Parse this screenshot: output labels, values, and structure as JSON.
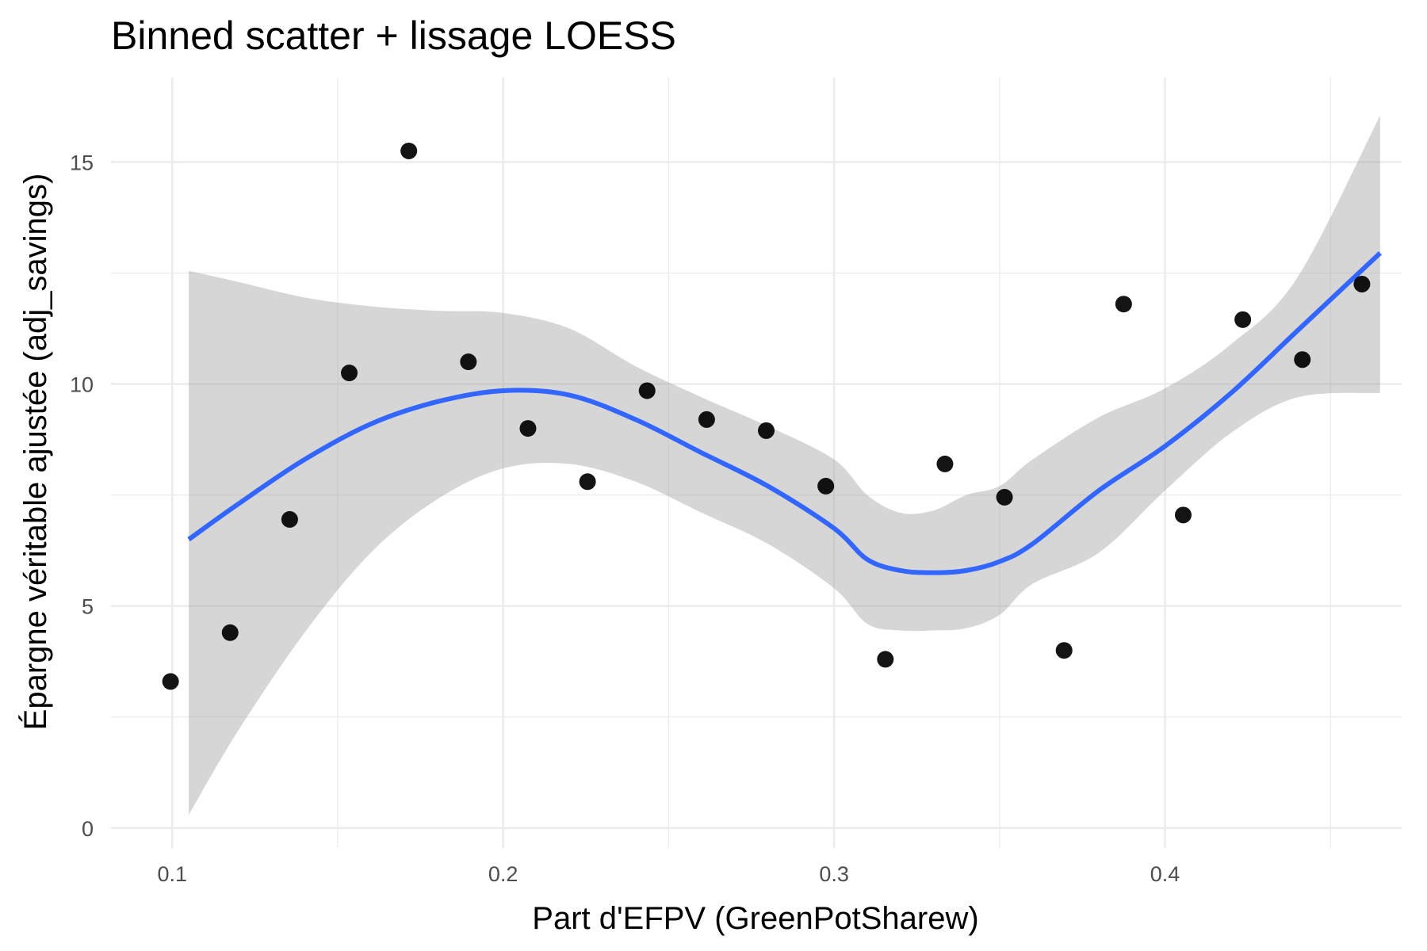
{
  "chart_data": {
    "type": "scatter",
    "title": "Binned scatter + lissage LOESS",
    "xlabel": "Part d'EFPV (GreenPotSharew)",
    "ylabel": "Épargne véritable ajustée (adj_savings)",
    "xlim": [
      0.0815,
      0.4715
    ],
    "ylim": [
      -0.45,
      16.9
    ],
    "x_ticks": [
      0.1,
      0.2,
      0.3,
      0.4
    ],
    "x_tick_labels": [
      "0.1",
      "0.2",
      "0.3",
      "0.4"
    ],
    "y_ticks": [
      0,
      5,
      10,
      15
    ],
    "y_tick_labels": [
      "0",
      "5",
      "10",
      "15"
    ],
    "grid": true,
    "legend": "none",
    "colors": {
      "points": "#000000",
      "smooth": "#3366ff",
      "band": "#999999"
    },
    "points": {
      "x": [
        0.0995,
        0.1175,
        0.1355,
        0.1535,
        0.1715,
        0.1895,
        0.2075,
        0.2255,
        0.2435,
        0.2615,
        0.2795,
        0.2975,
        0.3155,
        0.3335,
        0.3515,
        0.3695,
        0.3875,
        0.4055,
        0.4235,
        0.4415,
        0.4595
      ],
      "y": [
        3.3,
        4.4,
        6.95,
        10.25,
        15.25,
        10.5,
        9.0,
        7.8,
        9.85,
        9.2,
        8.95,
        7.7,
        3.8,
        8.2,
        7.45,
        4.0,
        11.8,
        7.05,
        11.45,
        10.55,
        12.25
      ]
    },
    "smooth": {
      "x": [
        0.105,
        0.12,
        0.14,
        0.16,
        0.18,
        0.2,
        0.22,
        0.24,
        0.26,
        0.28,
        0.3,
        0.31,
        0.32,
        0.33,
        0.34,
        0.35,
        0.36,
        0.38,
        0.4,
        0.42,
        0.44,
        0.465
      ],
      "y": [
        6.5,
        7.3,
        8.3,
        9.1,
        9.6,
        9.85,
        9.75,
        9.2,
        8.45,
        7.7,
        6.75,
        6.05,
        5.8,
        5.75,
        5.8,
        6.0,
        6.4,
        7.6,
        8.6,
        9.8,
        11.2,
        12.95
      ],
      "lower": [
        0.3,
        2.2,
        4.4,
        6.2,
        7.4,
        8.1,
        8.2,
        7.8,
        7.1,
        6.4,
        5.4,
        4.6,
        4.45,
        4.45,
        4.5,
        4.8,
        5.5,
        6.2,
        7.6,
        8.9,
        9.7,
        9.8
      ],
      "upper": [
        12.55,
        12.3,
        11.95,
        11.75,
        11.65,
        11.6,
        11.25,
        10.4,
        9.7,
        9.05,
        8.3,
        7.5,
        7.1,
        7.15,
        7.5,
        7.7,
        8.3,
        9.25,
        9.9,
        10.9,
        12.4,
        16.05
      ]
    }
  }
}
